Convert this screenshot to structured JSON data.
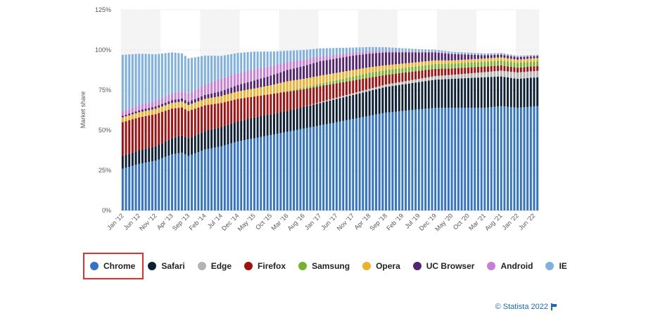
{
  "chart_data": {
    "type": "bar",
    "stacked": true,
    "title": "",
    "xlabel": "",
    "ylabel": "Market share",
    "ylim": [
      0,
      125
    ],
    "yticks": [
      0,
      25,
      50,
      75,
      100,
      125
    ],
    "ytick_labels": [
      "0%",
      "25%",
      "50%",
      "75%",
      "100%",
      "125%"
    ],
    "x_labels": [
      "Jan '12",
      "Jun '12",
      "Nov '12",
      "Apr '13",
      "Sep '13",
      "Feb '14",
      "Jul '14",
      "Dec '14",
      "May '15",
      "Oct '15",
      "Mar '16",
      "Aug '16",
      "Jan '17",
      "Jun '17",
      "Nov '17",
      "Apr '18",
      "Sep '18",
      "Feb '19",
      "Jul '19",
      "Dec '19",
      "May '20",
      "Oct '20",
      "Mar '21",
      "Aug '21",
      "Jan '22",
      "Jun '22"
    ],
    "x_label_step": 5,
    "n_bars": 127,
    "series": [
      {
        "name": "Chrome",
        "color": "#3273c8",
        "anchors": [
          [
            0,
            26
          ],
          [
            5,
            29
          ],
          [
            10,
            31
          ],
          [
            15,
            35
          ],
          [
            18,
            36
          ],
          [
            20,
            34
          ],
          [
            25,
            38
          ],
          [
            30,
            40
          ],
          [
            35,
            43
          ],
          [
            40,
            45
          ],
          [
            45,
            47
          ],
          [
            50,
            49
          ],
          [
            55,
            51
          ],
          [
            60,
            53
          ],
          [
            65,
            55
          ],
          [
            70,
            57
          ],
          [
            75,
            59
          ],
          [
            80,
            61
          ],
          [
            85,
            62
          ],
          [
            90,
            63
          ],
          [
            95,
            64
          ],
          [
            100,
            64
          ],
          [
            105,
            64
          ],
          [
            110,
            64
          ],
          [
            115,
            65
          ],
          [
            120,
            64
          ],
          [
            126,
            65
          ]
        ]
      },
      {
        "name": "Safari",
        "color": "#0d1f33",
        "anchors": [
          [
            0,
            8
          ],
          [
            10,
            9
          ],
          [
            20,
            11
          ],
          [
            30,
            12
          ],
          [
            40,
            13
          ],
          [
            50,
            13
          ],
          [
            60,
            14
          ],
          [
            70,
            15
          ],
          [
            80,
            16
          ],
          [
            90,
            17
          ],
          [
            100,
            18
          ],
          [
            110,
            19
          ],
          [
            120,
            18
          ],
          [
            126,
            18
          ]
        ]
      },
      {
        "name": "Edge",
        "color": "#b3b3b3",
        "anchors": [
          [
            0,
            0
          ],
          [
            55,
            0
          ],
          [
            60,
            0.5
          ],
          [
            70,
            1
          ],
          [
            80,
            1.5
          ],
          [
            90,
            2
          ],
          [
            100,
            2.5
          ],
          [
            110,
            3.2
          ],
          [
            120,
            4
          ],
          [
            126,
            4
          ]
        ]
      },
      {
        "name": "Firefox",
        "color": "#a30f0f",
        "anchors": [
          [
            0,
            21
          ],
          [
            10,
            20
          ],
          [
            20,
            17
          ],
          [
            30,
            15
          ],
          [
            40,
            13
          ],
          [
            50,
            12
          ],
          [
            60,
            10
          ],
          [
            70,
            8
          ],
          [
            80,
            6
          ],
          [
            90,
            5
          ],
          [
            100,
            4
          ],
          [
            110,
            3.5
          ],
          [
            120,
            3
          ],
          [
            126,
            3
          ]
        ]
      },
      {
        "name": "Samsung",
        "color": "#75b12c",
        "anchors": [
          [
            0,
            0
          ],
          [
            45,
            0
          ],
          [
            55,
            1
          ],
          [
            65,
            2
          ],
          [
            75,
            3
          ],
          [
            85,
            3
          ],
          [
            95,
            3
          ],
          [
            105,
            3
          ],
          [
            115,
            3
          ],
          [
            126,
            3
          ]
        ]
      },
      {
        "name": "Opera",
        "color": "#efb02a",
        "anchors": [
          [
            0,
            3
          ],
          [
            15,
            3.5
          ],
          [
            25,
            4
          ],
          [
            40,
            5
          ],
          [
            50,
            6
          ],
          [
            60,
            5
          ],
          [
            70,
            4
          ],
          [
            80,
            3
          ],
          [
            90,
            2.5
          ],
          [
            100,
            2
          ],
          [
            110,
            2
          ],
          [
            120,
            2
          ],
          [
            126,
            2
          ]
        ]
      },
      {
        "name": "UC Browser",
        "color": "#522471",
        "anchors": [
          [
            0,
            1
          ],
          [
            10,
            1.5
          ],
          [
            20,
            2
          ],
          [
            30,
            3
          ],
          [
            40,
            5
          ],
          [
            50,
            7
          ],
          [
            60,
            9
          ],
          [
            70,
            9
          ],
          [
            80,
            8
          ],
          [
            90,
            6
          ],
          [
            100,
            4
          ],
          [
            110,
            2
          ],
          [
            120,
            1.5
          ],
          [
            126,
            1.2
          ]
        ]
      },
      {
        "name": "Android",
        "color": "#c77ed9",
        "anchors": [
          [
            0,
            3
          ],
          [
            10,
            3.5
          ],
          [
            20,
            5
          ],
          [
            30,
            8
          ],
          [
            40,
            7
          ],
          [
            50,
            5
          ],
          [
            60,
            3
          ],
          [
            70,
            2
          ],
          [
            80,
            1
          ],
          [
            90,
            0.5
          ],
          [
            100,
            0.4
          ],
          [
            126,
            0.3
          ]
        ]
      },
      {
        "name": "IE",
        "color": "#7fb0e2",
        "anchors": [
          [
            0,
            35
          ],
          [
            10,
            29
          ],
          [
            20,
            22
          ],
          [
            30,
            14
          ],
          [
            40,
            11
          ],
          [
            50,
            7
          ],
          [
            60,
            5
          ],
          [
            70,
            3
          ],
          [
            80,
            2.2
          ],
          [
            90,
            1.5
          ],
          [
            100,
            1
          ],
          [
            110,
            0.8
          ],
          [
            120,
            0.6
          ],
          [
            126,
            0.5
          ]
        ]
      }
    ]
  },
  "legend": {
    "items": [
      {
        "label": "Chrome",
        "color": "#3273c8"
      },
      {
        "label": "Safari",
        "color": "#0d1f33"
      },
      {
        "label": "Edge",
        "color": "#b3b3b3"
      },
      {
        "label": "Firefox",
        "color": "#a30f0f"
      },
      {
        "label": "Samsung",
        "color": "#75b12c"
      },
      {
        "label": "Opera",
        "color": "#efb02a"
      },
      {
        "label": "UC Browser",
        "color": "#522471"
      },
      {
        "label": "Android",
        "color": "#c77ed9"
      },
      {
        "label": "IE",
        "color": "#7fb0e2"
      }
    ]
  },
  "credit": {
    "text": "© Statista 2022"
  },
  "highlight_color": "#e0312e"
}
